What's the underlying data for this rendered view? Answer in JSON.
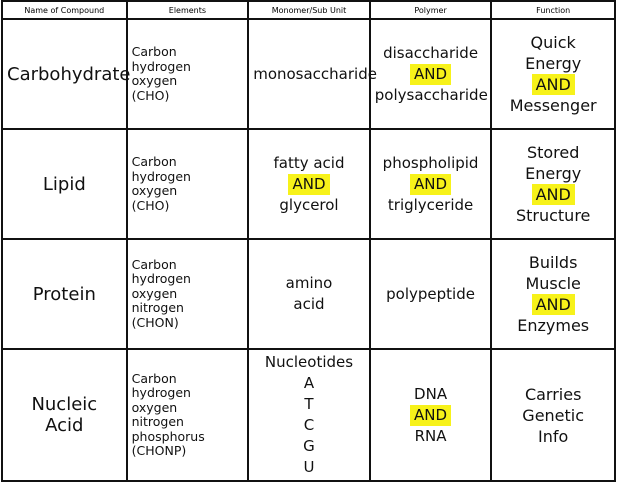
{
  "table": {
    "headers": [
      "Name of Compound",
      "Elements",
      "Monomer/Sub Unit",
      "Polymer",
      "Function"
    ],
    "rows": [
      [
        {
          "lines": [
            "Carbohydrate"
          ]
        },
        {
          "lines": [
            "Carbon",
            "hydrogen",
            "oxygen",
            "(CHO)"
          ]
        },
        {
          "lines": [
            "monosaccharide"
          ]
        },
        {
          "lines": [
            "disaccharide",
            "AND",
            "polysaccharide"
          ],
          "highlight": 1
        },
        {
          "lines": [
            "Quick",
            "Energy",
            "AND",
            "Messenger"
          ],
          "highlight": 2
        }
      ],
      [
        {
          "lines": [
            "Lipid"
          ]
        },
        {
          "lines": [
            "Carbon",
            "hydrogen",
            "oxygen",
            "(CHO)"
          ]
        },
        {
          "lines": [
            "fatty acid",
            "AND",
            "glycerol"
          ],
          "highlight": 1
        },
        {
          "lines": [
            "phospholipid",
            "AND",
            "triglyceride"
          ],
          "highlight": 1
        },
        {
          "lines": [
            "Stored",
            "Energy",
            "AND",
            "Structure"
          ],
          "highlight": 2
        }
      ],
      [
        {
          "lines": [
            "Protein"
          ]
        },
        {
          "lines": [
            "Carbon",
            "hydrogen",
            "oxygen",
            "nitrogen",
            "(CHON)"
          ]
        },
        {
          "lines": [
            "amino",
            "acid"
          ]
        },
        {
          "lines": [
            "polypeptide"
          ]
        },
        {
          "lines": [
            "Builds",
            "Muscle",
            "AND",
            "Enzymes"
          ],
          "highlight": 2
        }
      ],
      [
        {
          "lines": [
            "Nucleic",
            "Acid"
          ]
        },
        {
          "lines": [
            "Carbon",
            "hydrogen",
            "oxygen",
            "nitrogen",
            "phosphorus",
            "(CHONP)"
          ]
        },
        {
          "lines": [
            "Nucleotides",
            "A",
            "T",
            "C",
            "G",
            "U"
          ]
        },
        {
          "lines": [
            "DNA",
            "AND",
            "RNA"
          ],
          "highlight": 1
        },
        {
          "lines": [
            "Carries",
            "Genetic",
            "Info"
          ]
        }
      ]
    ]
  }
}
